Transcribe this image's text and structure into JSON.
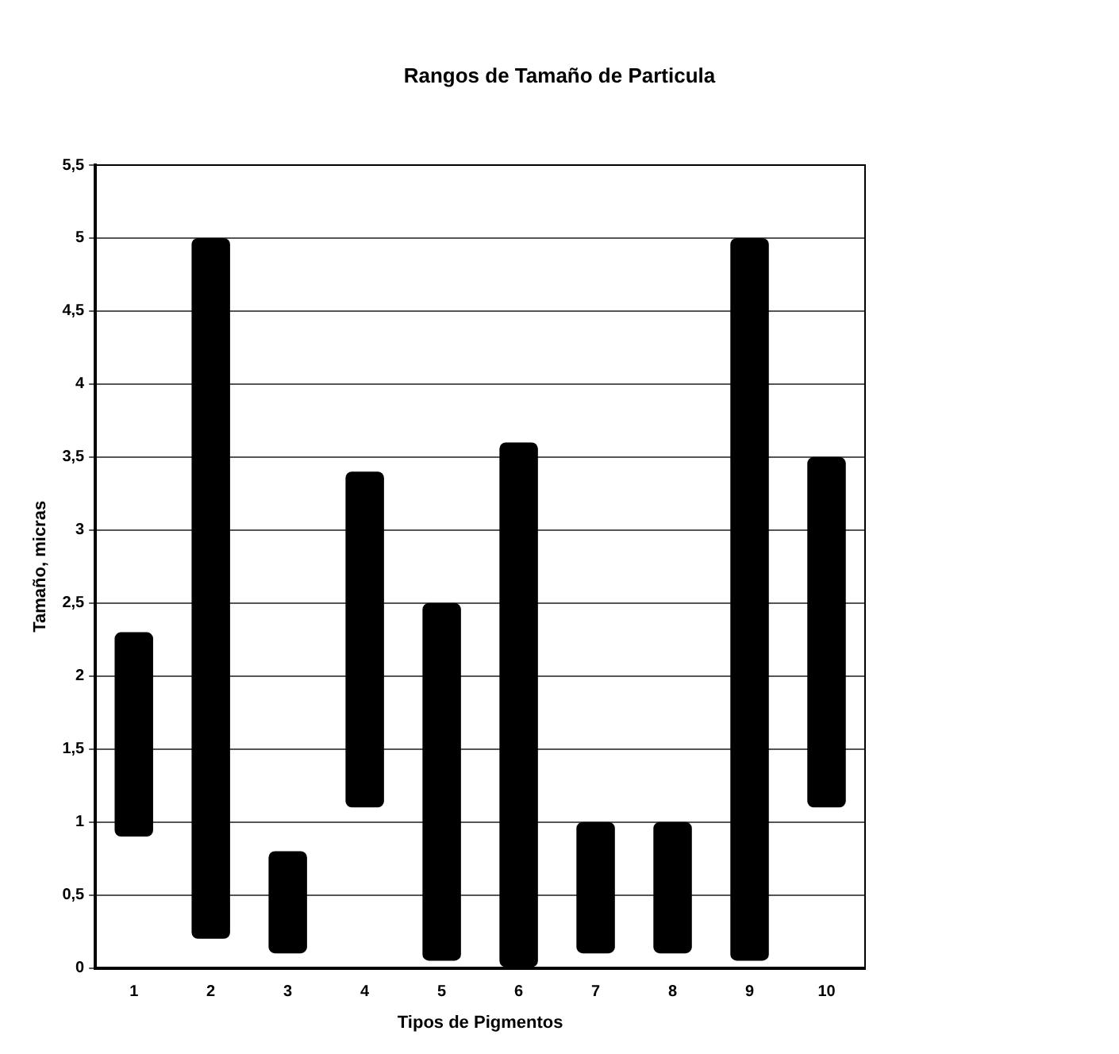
{
  "chart_data": {
    "type": "bar",
    "title": "Rangos de Tamaño de Particula",
    "xlabel": "Tipos de Pigmentos",
    "ylabel": "Tamaño, micras",
    "categories": [
      "1",
      "2",
      "3",
      "4",
      "5",
      "6",
      "7",
      "8",
      "9",
      "10"
    ],
    "base": [
      0.9,
      0.2,
      0.1,
      1.1,
      0.05,
      0,
      0.1,
      0.1,
      0.05,
      1.1
    ],
    "values": [
      1.4,
      4.8,
      0.7,
      2.3,
      2.45,
      3.6,
      0.9,
      0.9,
      4.95,
      2.4
    ],
    "color": "#000000",
    "ylim": [
      0,
      5.5
    ],
    "yticks": [
      0,
      {
        "value": 0.5,
        "label": "0,5"
      },
      1,
      {
        "value": 1.5,
        "label": "1,5"
      },
      2,
      {
        "value": 2.5,
        "label": "2,5"
      },
      3,
      {
        "value": 3.5,
        "label": "3,5"
      },
      4,
      {
        "value": 4.5,
        "label": "4,5"
      },
      5,
      {
        "value": 5.5,
        "label": "5,5"
      }
    ],
    "grid": "y",
    "legend": false
  }
}
